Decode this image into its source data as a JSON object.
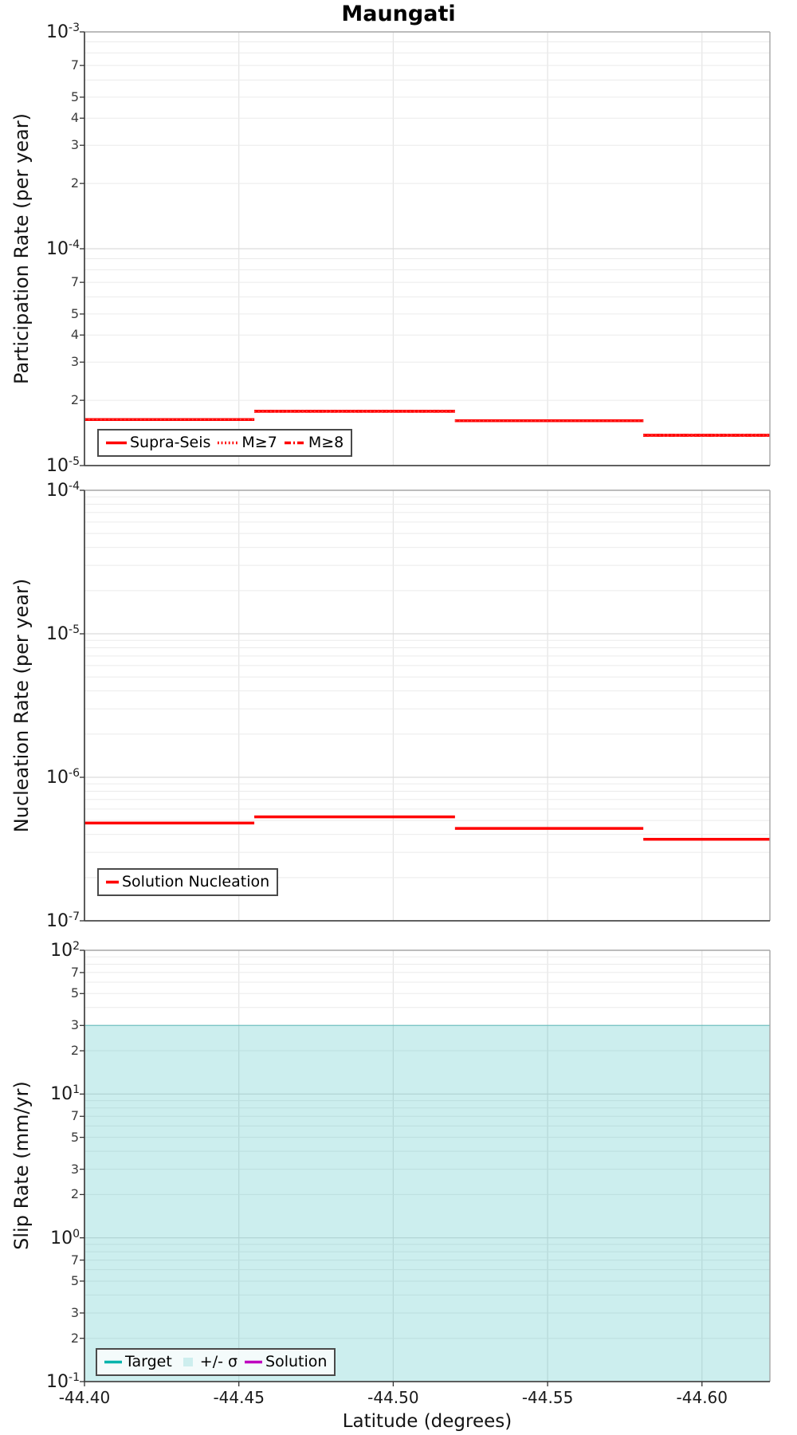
{
  "figure_title": "Maungati",
  "colors": {
    "line_red": "#ff0000",
    "target_teal": "#00b3ac",
    "solution_magenta": "#bf00bf",
    "sigma_fill": "#cdeeee",
    "grid_minor": "#ebebeb",
    "grid_major": "#dcdcdc",
    "grid_vertical": "#e4e4e4",
    "spine_dark": "#4a4a4a",
    "spine_light": "#a6a6a6",
    "tick_color": "#333333",
    "legend_border": "#4a4a4a"
  },
  "chart_data": [
    {
      "type": "line",
      "panel": "participation",
      "title": "Maungati",
      "ylabel": "Participation Rate (per year)",
      "yscale": "log",
      "ylim": [
        1e-05,
        0.001
      ],
      "xlim": [
        -44.4,
        -44.622
      ],
      "grid": true,
      "minor_tick_labels": [
        7,
        5,
        4,
        3,
        2
      ],
      "legend": [
        {
          "label": "Supra-Seis",
          "swatch": "solid",
          "color": "#ff0000"
        },
        {
          "label": "M≥7",
          "swatch": "dotted",
          "color": "#ff0000"
        },
        {
          "label": "M≥8",
          "swatch": "dashdot",
          "color": "#ff0000"
        }
      ],
      "series": [
        {
          "name": "Supra-Seis",
          "color": "#ff0000",
          "style": "solid",
          "steps": [
            [
              -44.4,
              -44.455,
              1.63e-05
            ],
            [
              -44.455,
              -44.52,
              1.78e-05
            ],
            [
              -44.52,
              -44.581,
              1.61e-05
            ],
            [
              -44.581,
              -44.622,
              1.38e-05
            ]
          ]
        },
        {
          "name": "M≥7",
          "color": "#ff0000",
          "style": "dotted",
          "steps": [
            [
              -44.4,
              -44.455,
              1.63e-05
            ],
            [
              -44.455,
              -44.52,
              1.78e-05
            ],
            [
              -44.52,
              -44.581,
              1.61e-05
            ],
            [
              -44.581,
              -44.622,
              1.38e-05
            ]
          ]
        },
        {
          "name": "M≥8",
          "color": "#ff0000",
          "style": "dashdot",
          "steps": [
            [
              -44.4,
              -44.455,
              1.63e-05
            ],
            [
              -44.455,
              -44.52,
              1.78e-05
            ],
            [
              -44.52,
              -44.581,
              1.61e-05
            ],
            [
              -44.581,
              -44.622,
              1.38e-05
            ]
          ]
        }
      ]
    },
    {
      "type": "line",
      "panel": "nucleation",
      "ylabel": "Nucleation Rate (per year)",
      "yscale": "log",
      "ylim": [
        1e-07,
        0.0001
      ],
      "xlim": [
        -44.4,
        -44.622
      ],
      "grid": true,
      "minor_tick_labels": [],
      "legend": [
        {
          "label": "Solution Nucleation",
          "swatch": "solid",
          "color": "#ff0000"
        }
      ],
      "series": [
        {
          "name": "Solution Nucleation",
          "color": "#ff0000",
          "style": "solid",
          "steps": [
            [
              -44.4,
              -44.455,
              4.8e-07
            ],
            [
              -44.455,
              -44.52,
              5.3e-07
            ],
            [
              -44.52,
              -44.581,
              4.4e-07
            ],
            [
              -44.581,
              -44.622,
              3.7e-07
            ]
          ]
        }
      ]
    },
    {
      "type": "line",
      "panel": "slip-rate",
      "ylabel": "Slip Rate (mm/yr)",
      "xlabel": "Latitude (degrees)",
      "yscale": "log",
      "ylim": [
        0.1,
        100
      ],
      "xlim": [
        -44.4,
        -44.622
      ],
      "x_ticks": [
        -44.4,
        -44.45,
        -44.5,
        -44.55,
        -44.6
      ],
      "x_tick_labels": [
        "-44.40",
        "-44.45",
        "-44.50",
        "-44.55",
        "-44.60"
      ],
      "grid": true,
      "minor_tick_labels": [
        7,
        5,
        3,
        2
      ],
      "legend": [
        {
          "label": "Target",
          "swatch": "solid",
          "color": "#00b3ac"
        },
        {
          "label": "+/- σ",
          "swatch": "band",
          "color": "#cdeeee"
        },
        {
          "label": "Solution",
          "swatch": "solid",
          "color": "#bf00bf"
        }
      ],
      "band": {
        "name": "+/- σ",
        "top": 30,
        "bottom": 0.1,
        "fill": "#cdeeee"
      },
      "series": [
        {
          "name": "Target",
          "color": "#00b3ac",
          "style": "solid",
          "steps": []
        },
        {
          "name": "Solution",
          "color": "#bf00bf",
          "style": "solid",
          "steps": []
        }
      ]
    }
  ]
}
